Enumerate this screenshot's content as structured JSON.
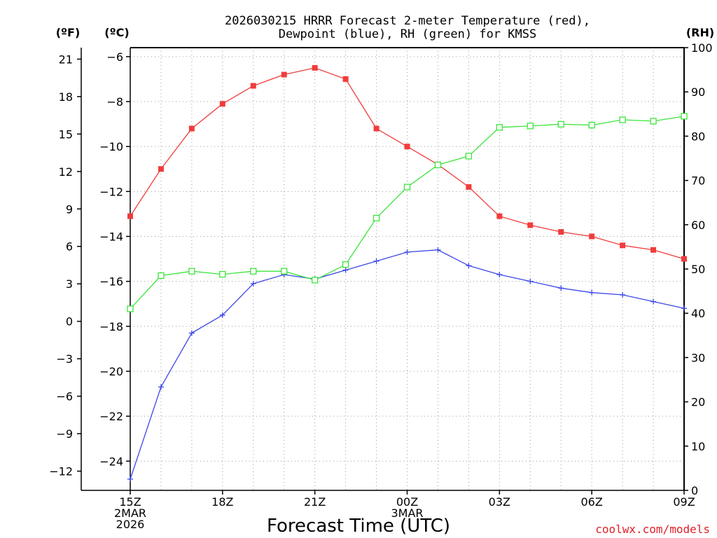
{
  "chart_data": {
    "type": "line",
    "title_line1": "2026030215 HRRR Forecast 2-meter Temperature (red),",
    "title_line2": "Dewpoint (blue), RH (green) for KMSS",
    "xlabel": "Forecast Time (UTC)",
    "credit": "coolwx.com/models",
    "unit_f": "(ºF)",
    "unit_c": "(ºC)",
    "unit_rh": "(RH)",
    "x_hours": [
      0,
      1,
      2,
      3,
      4,
      5,
      6,
      7,
      8,
      9,
      10,
      11,
      12,
      13,
      14,
      15,
      16,
      17,
      18
    ],
    "xlim": [
      0,
      18
    ],
    "x_ticks": [
      {
        "hour": 0,
        "lines": [
          "15Z",
          "2MAR",
          "2026"
        ]
      },
      {
        "hour": 3,
        "lines": [
          "18Z"
        ]
      },
      {
        "hour": 6,
        "lines": [
          "21Z"
        ]
      },
      {
        "hour": 9,
        "lines": [
          "00Z",
          "3MAR"
        ]
      },
      {
        "hour": 12,
        "lines": [
          "03Z"
        ]
      },
      {
        "hour": 15,
        "lines": [
          "06Z"
        ]
      },
      {
        "hour": 18,
        "lines": [
          "09Z"
        ]
      }
    ],
    "ylim_c": [
      -25.3,
      -5.6
    ],
    "y_ticks_c": [
      -6,
      -8,
      -10,
      -12,
      -14,
      -16,
      -18,
      -20,
      -22,
      -24
    ],
    "y_ticks_f": [
      21,
      18,
      15,
      12,
      9,
      6,
      3,
      0,
      -3,
      -6,
      -9,
      -12
    ],
    "ylim_rh": [
      0,
      100
    ],
    "y_ticks_rh": [
      100,
      90,
      80,
      70,
      60,
      50,
      40,
      30,
      20,
      10,
      0
    ],
    "series": [
      {
        "name": "Temperature",
        "color": "#f03c3c",
        "axis": "c",
        "marker": "filled-square",
        "values": [
          -13.1,
          -11.0,
          -9.2,
          -8.1,
          -7.3,
          -6.8,
          -6.5,
          -7.0,
          -9.2,
          -10.0,
          -10.8,
          -11.8,
          -13.1,
          -13.5,
          -13.8,
          -14.0,
          -14.4,
          -14.6,
          -15.0
        ]
      },
      {
        "name": "Dewpoint",
        "color": "#3c48e6",
        "axis": "c",
        "marker": "plus",
        "values": [
          -24.8,
          -20.7,
          -18.3,
          -17.5,
          -16.1,
          -15.7,
          -15.9,
          -15.5,
          -15.1,
          -14.7,
          -14.6,
          -15.3,
          -15.7,
          -16.0,
          -16.3,
          -16.5,
          -16.6,
          -16.9,
          -17.2
        ]
      },
      {
        "name": "RH",
        "color": "#3ce43c",
        "axis": "rh",
        "marker": "open-square",
        "values": [
          41,
          48.5,
          49.5,
          48.8,
          49.5,
          49.5,
          47.5,
          51,
          61.5,
          68.5,
          73.5,
          75.5,
          82,
          82.3,
          82.7,
          82.5,
          83.7,
          83.4,
          84.5
        ]
      }
    ]
  }
}
